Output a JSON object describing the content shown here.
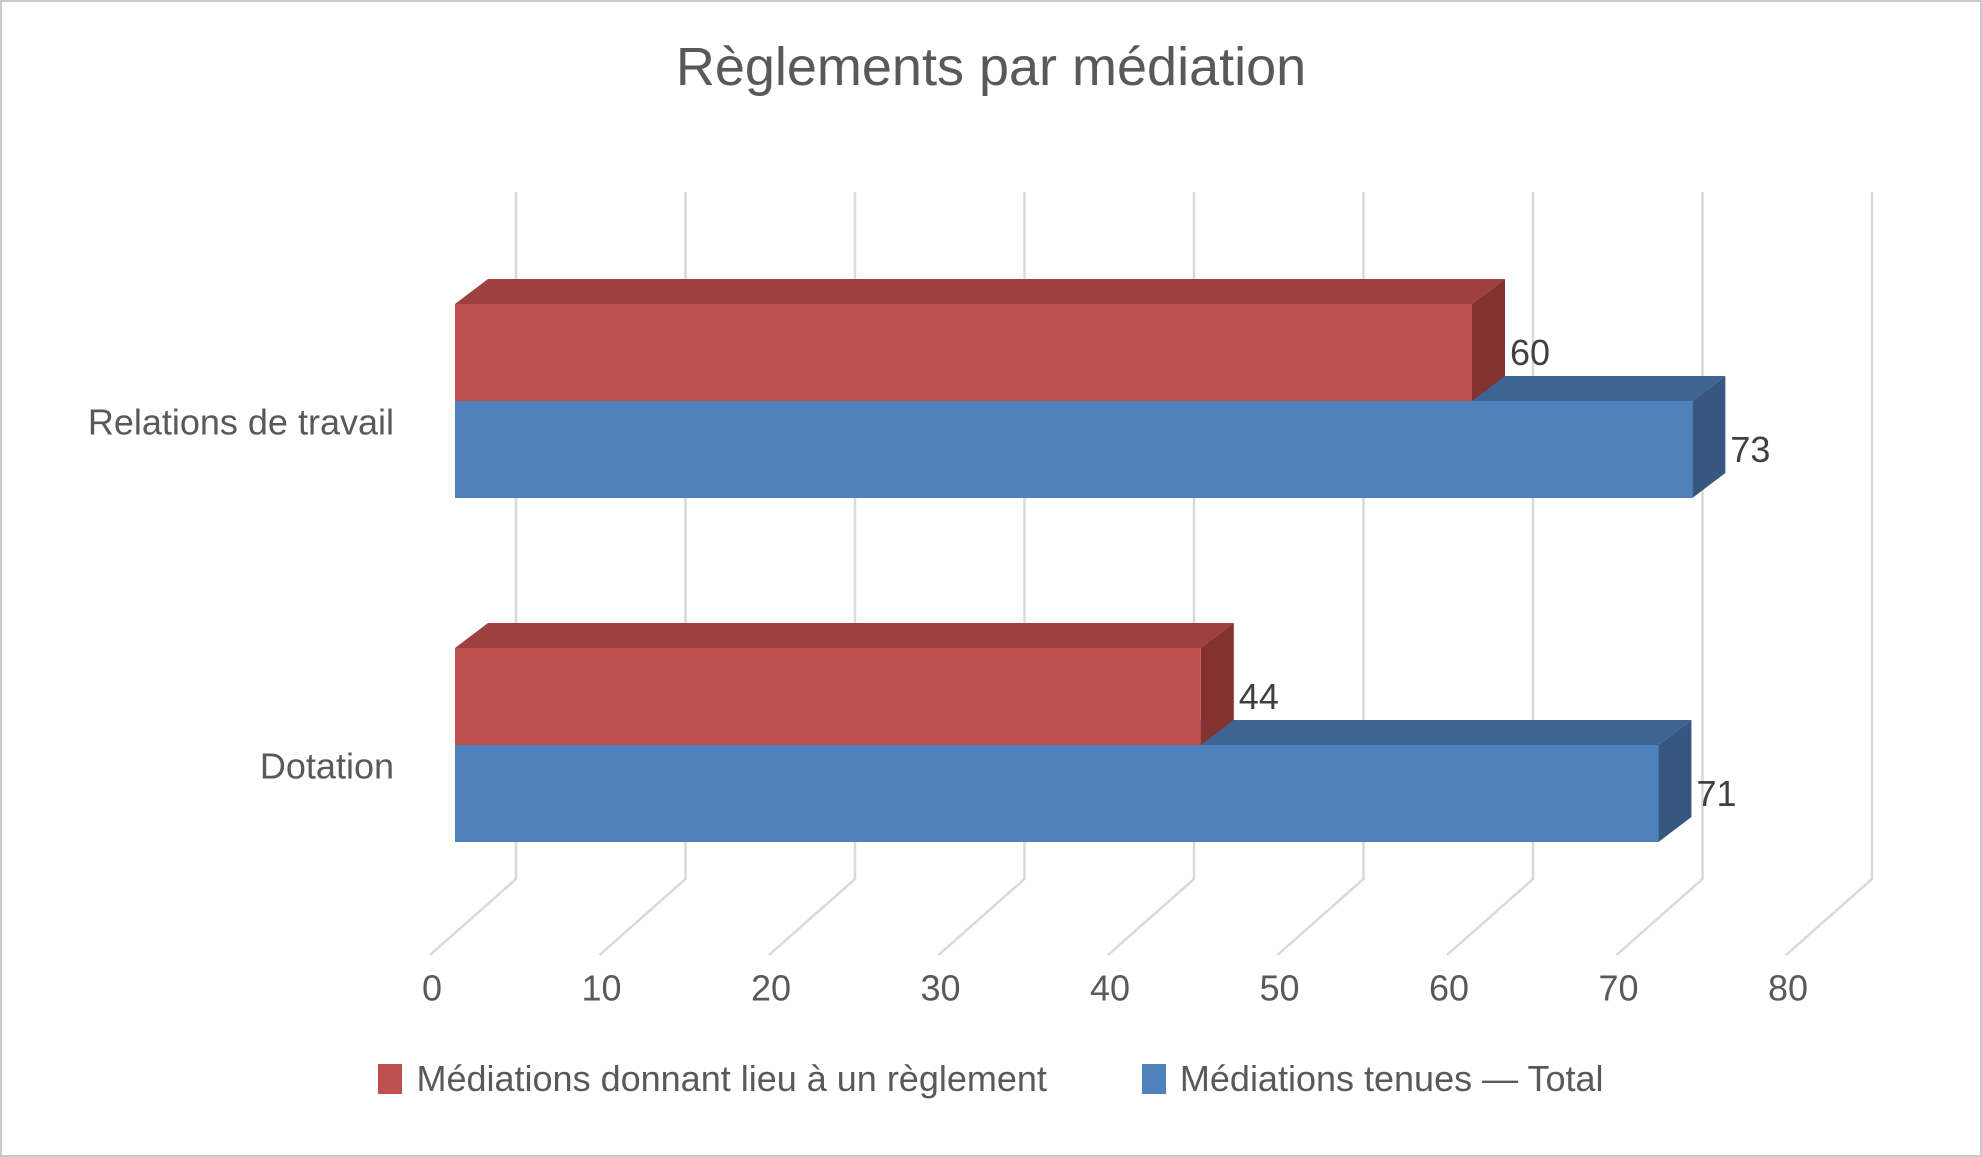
{
  "title": "Règlements par médiation",
  "chart_data": {
    "type": "bar",
    "orientation": "horizontal",
    "projection": "3d",
    "title": "Règlements par médiation",
    "categories": [
      "Relations de travail",
      "Dotation"
    ],
    "series": [
      {
        "name": "Médiations donnant lieu à un règlement",
        "color": "#C0504D",
        "color_top": "#9E403D",
        "color_side": "#84322F",
        "values": [
          60,
          44
        ]
      },
      {
        "name": "Médiations tenues — Total",
        "color": "#4F81BD",
        "color_top": "#3D6493",
        "color_side": "#365880",
        "values": [
          73,
          71
        ]
      }
    ],
    "x_ticks": [
      0,
      10,
      20,
      30,
      40,
      50,
      60,
      70,
      80
    ],
    "xlim": [
      0,
      85
    ],
    "grid": true,
    "data_labels": true,
    "legend_position": "bottom",
    "axis_color": "#595959",
    "label_color": "#404040",
    "gridline_color": "#D9D9D9"
  }
}
